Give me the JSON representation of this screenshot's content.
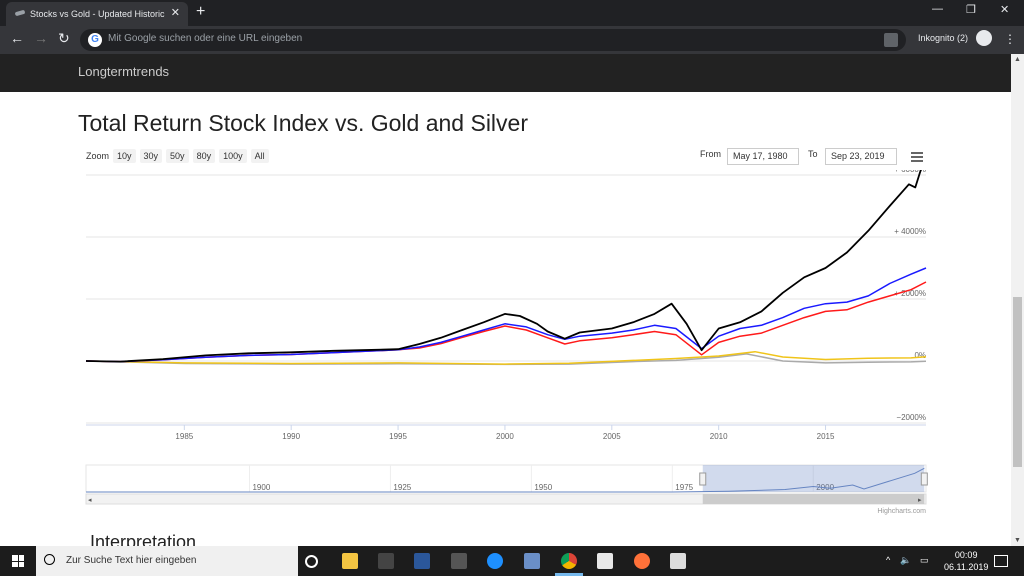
{
  "browser": {
    "tab_title": "Stocks vs Gold - Updated Historic",
    "tab_close": "✕",
    "new_tab": "+",
    "minimize": "—",
    "restore": "❐",
    "close": "✕",
    "back": "←",
    "forward": "→",
    "reload": "↻",
    "omnibox_placeholder": "Mit Google suchen oder eine URL eingeben",
    "incognito_label": "Inkognito (2)",
    "menu": "⋮"
  },
  "site": {
    "brand": "Longtermtrends",
    "page_title": "Total Return Stock Index vs. Gold and Silver",
    "section_heading": "Interpretation"
  },
  "chart_controls": {
    "zoom_label": "Zoom",
    "zoom_buttons": [
      "10y",
      "30y",
      "50y",
      "80y",
      "100y",
      "All"
    ],
    "from_label": "From",
    "from_value": "May 17, 1980",
    "to_label": "To",
    "to_value": "Sep 23, 2019",
    "credit": "Highcharts.com"
  },
  "chart_data": {
    "type": "line",
    "xlim": [
      1980.4,
      2019.7
    ],
    "ylim": [
      -2000,
      6000
    ],
    "x_ticks": [
      1985,
      1990,
      1995,
      2000,
      2005,
      2010,
      2015
    ],
    "y_ticks": [
      {
        "value": 6000,
        "label": "+ 6000%"
      },
      {
        "value": 4000,
        "label": "+ 4000%"
      },
      {
        "value": 2000,
        "label": "+ 2000%"
      },
      {
        "value": 0,
        "label": "0%"
      },
      {
        "value": -2000,
        "label": "−2000%"
      }
    ],
    "grid": true,
    "series": [
      {
        "color": "#000000",
        "x": [
          1980.4,
          1982,
          1984,
          1986,
          1988,
          1990,
          1992,
          1994,
          1995,
          1996,
          1997,
          1998,
          1999,
          2000,
          2000.7,
          2001.5,
          2002,
          2002.8,
          2003.5,
          2005,
          2006,
          2007,
          2007.8,
          2008.5,
          2009.2,
          2010,
          2011,
          2012,
          2013,
          2014,
          2015,
          2016,
          2017,
          2018,
          2018.9,
          2019.2,
          2019.7
        ],
        "y": [
          0,
          -20,
          60,
          180,
          250,
          280,
          330,
          360,
          380,
          550,
          750,
          1000,
          1250,
          1520,
          1450,
          1200,
          950,
          720,
          920,
          1050,
          1250,
          1520,
          1850,
          1200,
          350,
          1050,
          1250,
          1600,
          2200,
          2700,
          3000,
          3500,
          4200,
          5000,
          5700,
          5600,
          6700
        ]
      },
      {
        "color": "#1a1aff",
        "x": [
          1980.4,
          1982,
          1984,
          1986,
          1988,
          1990,
          1992,
          1994,
          1995,
          1996,
          1997,
          1998,
          1999,
          2000,
          2001,
          2002,
          2002.8,
          2003.5,
          2005,
          2006,
          2007,
          2008,
          2009.2,
          2010,
          2011,
          2012,
          2013,
          2014,
          2015,
          2016,
          2017,
          2018,
          2019,
          2019.7
        ],
        "y": [
          0,
          -20,
          40,
          120,
          180,
          210,
          270,
          330,
          360,
          450,
          600,
          800,
          1000,
          1200,
          1100,
          850,
          700,
          800,
          900,
          1000,
          1150,
          1050,
          400,
          800,
          1050,
          1150,
          1400,
          1700,
          1850,
          1900,
          2100,
          2500,
          2800,
          3000
        ]
      },
      {
        "color": "#ff1a1a",
        "x": [
          1980.4,
          1982,
          1984,
          1986,
          1988,
          1990,
          1992,
          1994,
          1995,
          1996,
          1997,
          1998,
          1999,
          2000,
          2001,
          2002,
          2002.8,
          2003.5,
          2005,
          2006,
          2007,
          2008,
          2009.2,
          2010,
          2011,
          2012,
          2013,
          2014,
          2015,
          2016,
          2017,
          2018,
          2019,
          2019.7
        ],
        "y": [
          0,
          -20,
          40,
          120,
          180,
          210,
          270,
          330,
          360,
          420,
          560,
          760,
          950,
          1130,
          1000,
          750,
          550,
          650,
          750,
          850,
          950,
          850,
          200,
          600,
          800,
          900,
          1150,
          1400,
          1600,
          1650,
          1900,
          2100,
          2300,
          2550
        ]
      },
      {
        "color": "#f0c419",
        "x": [
          1980.4,
          1985,
          1990,
          1995,
          2000,
          2003,
          2006,
          2008,
          2010,
          2011.7,
          2013,
          2015,
          2017,
          2019,
          2019.7
        ],
        "y": [
          0,
          -60,
          -80,
          -60,
          -100,
          -70,
          20,
          80,
          160,
          300,
          130,
          50,
          90,
          100,
          140
        ]
      },
      {
        "color": "#aaaaaa",
        "x": [
          1980.4,
          1985,
          1990,
          1995,
          2000,
          2003,
          2006,
          2008,
          2010,
          2011.3,
          2013,
          2015,
          2017,
          2019,
          2019.7
        ],
        "y": [
          0,
          -80,
          -100,
          -90,
          -110,
          -100,
          -20,
          20,
          120,
          230,
          0,
          -60,
          -40,
          -30,
          -10
        ]
      }
    ],
    "navigator": {
      "x_ticks": [
        1900,
        1925,
        1950,
        1975,
        2000
      ],
      "xlim": [
        1871,
        2020
      ],
      "selection": [
        1980.4,
        2019.7
      ],
      "series_x": [
        1871,
        1900,
        1925,
        1950,
        1975,
        1985,
        1995,
        2000,
        2003,
        2007,
        2009,
        2013,
        2018,
        2019.7
      ],
      "series_y": [
        0,
        0,
        0,
        0,
        0,
        3,
        10,
        22,
        15,
        28,
        12,
        40,
        75,
        95
      ]
    }
  },
  "taskbar": {
    "search_placeholder": "Zur Suche Text hier eingeben",
    "time": "00:09",
    "date": "06.11.2019"
  }
}
